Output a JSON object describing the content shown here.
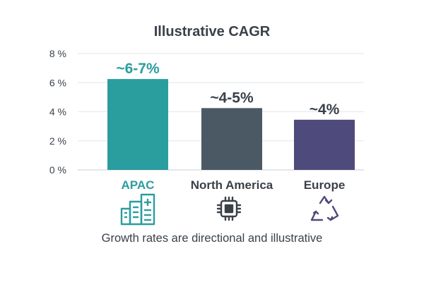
{
  "chart_data": {
    "type": "bar",
    "title": "Illustrative CAGR",
    "categories": [
      "APAC",
      "North America",
      "Europe"
    ],
    "values": [
      6.25,
      4.25,
      3.45
    ],
    "value_labels": [
      "~6-7%",
      "~4-5%",
      "~4%"
    ],
    "bar_colors": [
      "#2a9d9f",
      "#4a5964",
      "#4f4a7c"
    ],
    "label_colors": [
      "#2a9d9f",
      "#3a4149",
      "#3a4149"
    ],
    "value_label_colors": [
      "#2a9d9f",
      "#3a4149",
      "#3a4149"
    ],
    "ylim": [
      0,
      8
    ],
    "yticks": [
      0,
      2,
      4,
      6,
      8
    ],
    "ytick_labels": [
      "0 %",
      "2 %",
      "4 %",
      "6 %",
      "8 %"
    ],
    "grid": true,
    "xlabel": "",
    "ylabel": ""
  },
  "icons": [
    "buildings-icon",
    "microchip-icon",
    "recycle-icon"
  ],
  "footnote": "Growth rates are directional and illustrative"
}
